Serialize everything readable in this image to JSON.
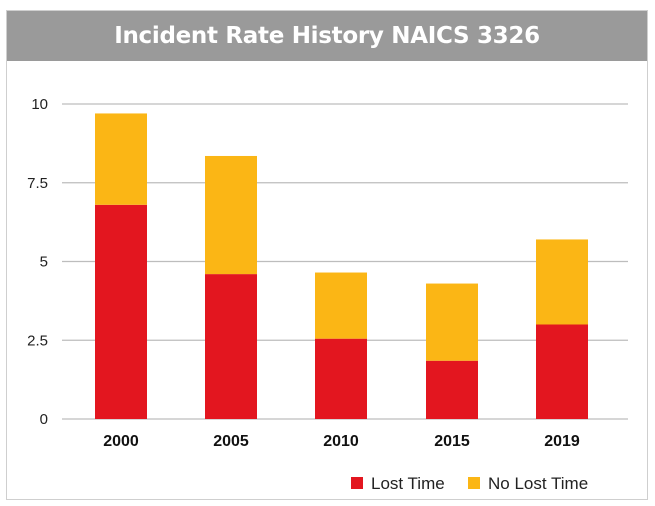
{
  "chart_data": {
    "type": "bar",
    "stacked": true,
    "title": "Incident Rate History NAICS 3326",
    "xlabel": "",
    "ylabel": "",
    "categories": [
      "2000",
      "2005",
      "2010",
      "2015",
      "2019"
    ],
    "series": [
      {
        "name": "Lost Time",
        "color": "#e3161f",
        "values": [
          6.8,
          4.6,
          2.55,
          1.85,
          3.0
        ]
      },
      {
        "name": "No Lost Time",
        "color": "#fbb615",
        "values": [
          2.9,
          3.75,
          2.1,
          2.45,
          2.7
        ]
      }
    ],
    "ylim": [
      0,
      10
    ],
    "yticks": [
      "0",
      "2.5",
      "5",
      "7.5",
      "10"
    ],
    "ytick_values": [
      0,
      2.5,
      5,
      7.5,
      10
    ],
    "grid": true,
    "legend_position": "bottom-right",
    "colors": {
      "title_bar": "#9a9a9a",
      "gridline": "#bdbdbd"
    }
  }
}
